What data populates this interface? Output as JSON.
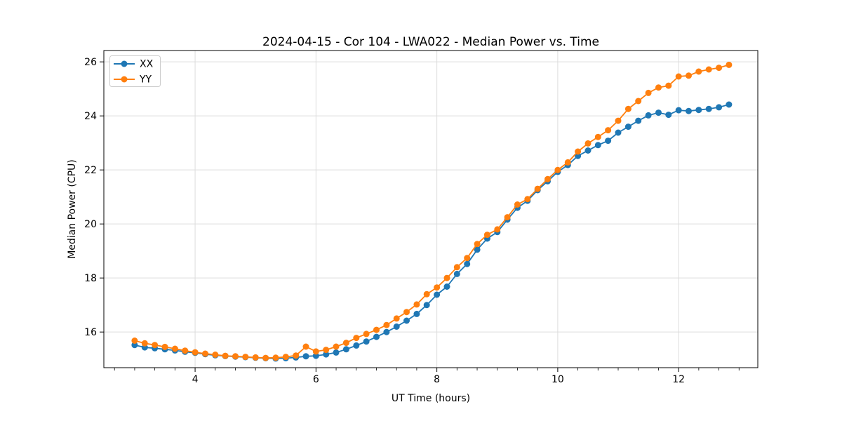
{
  "chart_data": {
    "type": "line",
    "title": "2024-04-15 - Cor 104 - LWA022 - Median Power vs. Time",
    "xlabel": "UT Time (hours)",
    "ylabel": "Median Power (CPU)",
    "xlim": [
      2.49,
      13.31
    ],
    "ylim": [
      14.68,
      26.42
    ],
    "xticks": [
      4,
      6,
      8,
      10,
      12
    ],
    "yticks": [
      16,
      18,
      20,
      22,
      24,
      26
    ],
    "x_minor_tick_step": 0.33333,
    "grid": true,
    "legend_position": "upper-left",
    "background_color": "#ffffff",
    "grid_color": "#dcdcdc",
    "x": [
      3.0,
      3.167,
      3.333,
      3.5,
      3.667,
      3.833,
      4.0,
      4.167,
      4.333,
      4.5,
      4.667,
      4.833,
      5.0,
      5.167,
      5.333,
      5.5,
      5.667,
      5.833,
      6.0,
      6.167,
      6.333,
      6.5,
      6.667,
      6.833,
      7.0,
      7.167,
      7.333,
      7.5,
      7.667,
      7.833,
      8.0,
      8.167,
      8.333,
      8.5,
      8.667,
      8.833,
      9.0,
      9.167,
      9.333,
      9.5,
      9.667,
      9.833,
      10.0,
      10.167,
      10.333,
      10.5,
      10.667,
      10.833,
      11.0,
      11.167,
      11.333,
      11.5,
      11.667,
      11.833,
      12.0,
      12.167,
      12.333,
      12.5,
      12.667,
      12.833
    ],
    "series": [
      {
        "name": "XX",
        "color": "#1f77b4",
        "values": [
          15.52,
          15.43,
          15.4,
          15.36,
          15.32,
          15.27,
          15.23,
          15.18,
          15.14,
          15.11,
          15.09,
          15.07,
          15.05,
          15.03,
          15.02,
          15.03,
          15.06,
          15.1,
          15.12,
          15.17,
          15.24,
          15.36,
          15.5,
          15.65,
          15.82,
          16.0,
          16.2,
          16.42,
          16.67,
          17.0,
          17.38,
          17.68,
          18.15,
          18.52,
          19.05,
          19.46,
          19.7,
          20.16,
          20.6,
          20.86,
          21.25,
          21.58,
          21.93,
          22.18,
          22.52,
          22.72,
          22.92,
          23.08,
          23.38,
          23.6,
          23.82,
          24.02,
          24.12,
          24.04,
          24.21,
          24.18,
          24.22,
          24.26,
          24.32,
          24.42
        ]
      },
      {
        "name": "YY",
        "color": "#ff7f0e",
        "values": [
          15.68,
          15.58,
          15.52,
          15.45,
          15.38,
          15.31,
          15.25,
          15.2,
          15.16,
          15.12,
          15.1,
          15.08,
          15.06,
          15.04,
          15.05,
          15.08,
          15.13,
          15.46,
          15.28,
          15.34,
          15.46,
          15.6,
          15.78,
          15.93,
          16.08,
          16.26,
          16.5,
          16.74,
          17.02,
          17.4,
          17.65,
          18.0,
          18.4,
          18.74,
          19.26,
          19.6,
          19.8,
          20.25,
          20.72,
          20.92,
          21.3,
          21.66,
          22.0,
          22.28,
          22.68,
          22.98,
          23.22,
          23.47,
          23.82,
          24.26,
          24.55,
          24.85,
          25.05,
          25.12,
          25.46,
          25.49,
          25.64,
          25.72,
          25.78,
          25.89
        ]
      }
    ]
  }
}
